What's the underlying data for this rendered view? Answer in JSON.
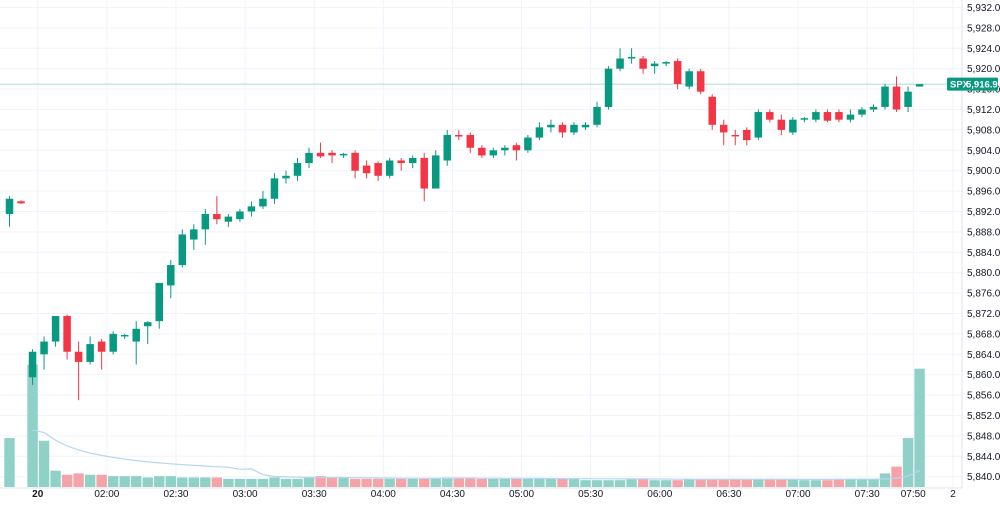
{
  "chart_data": {
    "type": "candlestick",
    "symbol": "SPX",
    "last_price": "5,916.97",
    "y_range": [
      5836,
      5934
    ],
    "y_ticks": [
      "5,840.00",
      "5,844.00",
      "5,848.00",
      "5,852.00",
      "5,856.00",
      "5,860.00",
      "5,864.00",
      "5,868.00",
      "5,872.00",
      "5,876.00",
      "5,880.00",
      "5,884.00",
      "5,888.00",
      "5,892.00",
      "5,896.00",
      "5,900.00",
      "5,904.00",
      "5,908.00",
      "5,912.00",
      "5,916.00",
      "5,920.00",
      "5,924.00",
      "5,928.00",
      "5,932.00"
    ],
    "x_ticks": [
      {
        "label": "20",
        "index": 2.45
      },
      {
        "label": "02:00",
        "index": 8.45
      },
      {
        "label": "02:30",
        "index": 14.45
      },
      {
        "label": "03:00",
        "index": 20.45
      },
      {
        "label": "03:30",
        "index": 26.45
      },
      {
        "label": "04:00",
        "index": 32.45
      },
      {
        "label": "04:30",
        "index": 38.45
      },
      {
        "label": "05:00",
        "index": 44.45
      },
      {
        "label": "05:30",
        "index": 50.45
      },
      {
        "label": "06:00",
        "index": 56.45
      },
      {
        "label": "06:30",
        "index": 62.45
      },
      {
        "label": "07:00",
        "index": 68.45
      },
      {
        "label": "07:30",
        "index": 74.45
      },
      {
        "label": "07:50",
        "index": 78.45
      },
      {
        "label": "2",
        "index": 81.9
      }
    ],
    "volume_max": 100,
    "candles": [
      {
        "o": 5891.5,
        "h": 5895.0,
        "l": 5889.0,
        "c": 5894.5,
        "v": 36
      },
      {
        "o": 5894.0,
        "h": 5894.2,
        "l": 5893.5,
        "c": 5893.6,
        "v": 0
      },
      {
        "o": 5859.5,
        "h": 5865.0,
        "l": 5858.0,
        "c": 5864.5,
        "v": 90
      },
      {
        "o": 5864.0,
        "h": 5867.5,
        "l": 5861.0,
        "c": 5866.5,
        "v": 34
      },
      {
        "o": 5866.5,
        "h": 5871.5,
        "l": 5865.5,
        "c": 5871.5,
        "v": 12
      },
      {
        "o": 5871.5,
        "h": 5871.8,
        "l": 5863.0,
        "c": 5864.5,
        "v": 9
      },
      {
        "o": 5864.5,
        "h": 5866.5,
        "l": 5855.0,
        "c": 5862.5,
        "v": 10
      },
      {
        "o": 5862.5,
        "h": 5867.5,
        "l": 5862.0,
        "c": 5866.0,
        "v": 9
      },
      {
        "o": 5866.5,
        "h": 5867.0,
        "l": 5861.0,
        "c": 5864.5,
        "v": 9
      },
      {
        "o": 5864.5,
        "h": 5868.5,
        "l": 5864.0,
        "c": 5868.0,
        "v": 8
      },
      {
        "o": 5867.5,
        "h": 5868.0,
        "l": 5867.0,
        "c": 5867.8,
        "v": 8
      },
      {
        "o": 5866.5,
        "h": 5870.5,
        "l": 5862.0,
        "c": 5869.0,
        "v": 8
      },
      {
        "o": 5869.5,
        "h": 5870.5,
        "l": 5866.0,
        "c": 5870.3,
        "v": 7
      },
      {
        "o": 5870.5,
        "h": 5878.0,
        "l": 5869.0,
        "c": 5878.0,
        "v": 8
      },
      {
        "o": 5877.5,
        "h": 5882.5,
        "l": 5875.0,
        "c": 5881.5,
        "v": 8
      },
      {
        "o": 5881.5,
        "h": 5888.5,
        "l": 5881.0,
        "c": 5887.5,
        "v": 7
      },
      {
        "o": 5886.5,
        "h": 5889.5,
        "l": 5884.5,
        "c": 5888.5,
        "v": 7
      },
      {
        "o": 5888.5,
        "h": 5892.5,
        "l": 5885.5,
        "c": 5891.5,
        "v": 7
      },
      {
        "o": 5891.5,
        "h": 5895.0,
        "l": 5889.5,
        "c": 5890.5,
        "v": 7
      },
      {
        "o": 5890.0,
        "h": 5891.5,
        "l": 5889.0,
        "c": 5891.0,
        "v": 6
      },
      {
        "o": 5890.5,
        "h": 5892.5,
        "l": 5890.0,
        "c": 5892.0,
        "v": 6
      },
      {
        "o": 5892.0,
        "h": 5894.0,
        "l": 5891.0,
        "c": 5893.0,
        "v": 6
      },
      {
        "o": 5893.0,
        "h": 5896.0,
        "l": 5892.5,
        "c": 5894.5,
        "v": 6
      },
      {
        "o": 5894.5,
        "h": 5899.5,
        "l": 5893.5,
        "c": 5898.5,
        "v": 7
      },
      {
        "o": 5898.5,
        "h": 5900.0,
        "l": 5897.5,
        "c": 5899.0,
        "v": 6
      },
      {
        "o": 5899.0,
        "h": 5902.5,
        "l": 5898.0,
        "c": 5901.5,
        "v": 6
      },
      {
        "o": 5901.5,
        "h": 5904.5,
        "l": 5900.5,
        "c": 5903.5,
        "v": 7
      },
      {
        "o": 5903.5,
        "h": 5905.5,
        "l": 5902.5,
        "c": 5902.8,
        "v": 8
      },
      {
        "o": 5903.5,
        "h": 5904.0,
        "l": 5901.5,
        "c": 5903.0,
        "v": 7
      },
      {
        "o": 5903.0,
        "h": 5903.5,
        "l": 5902.5,
        "c": 5903.3,
        "v": 7
      },
      {
        "o": 5903.5,
        "h": 5904.0,
        "l": 5898.5,
        "c": 5900.0,
        "v": 6
      },
      {
        "o": 5901.0,
        "h": 5902.0,
        "l": 5898.5,
        "c": 5899.5,
        "v": 6
      },
      {
        "o": 5901.5,
        "h": 5901.8,
        "l": 5898.0,
        "c": 5899.0,
        "v": 6
      },
      {
        "o": 5899.0,
        "h": 5902.5,
        "l": 5898.5,
        "c": 5902.0,
        "v": 6
      },
      {
        "o": 5902.0,
        "h": 5902.5,
        "l": 5900.0,
        "c": 5901.5,
        "v": 6
      },
      {
        "o": 5901.5,
        "h": 5903.0,
        "l": 5900.5,
        "c": 5902.5,
        "v": 6
      },
      {
        "o": 5902.5,
        "h": 5903.5,
        "l": 5894.0,
        "c": 5896.5,
        "v": 6
      },
      {
        "o": 5896.5,
        "h": 5904.0,
        "l": 5896.5,
        "c": 5903.0,
        "v": 6
      },
      {
        "o": 5902.0,
        "h": 5908.0,
        "l": 5901.0,
        "c": 5907.0,
        "v": 7
      },
      {
        "o": 5907.0,
        "h": 5908.0,
        "l": 5906.0,
        "c": 5906.7,
        "v": 7
      },
      {
        "o": 5907.0,
        "h": 5907.5,
        "l": 5903.5,
        "c": 5904.5,
        "v": 7
      },
      {
        "o": 5904.5,
        "h": 5905.0,
        "l": 5902.5,
        "c": 5903.0,
        "v": 6
      },
      {
        "o": 5903.0,
        "h": 5904.5,
        "l": 5902.5,
        "c": 5904.0,
        "v": 6
      },
      {
        "o": 5904.0,
        "h": 5905.0,
        "l": 5903.0,
        "c": 5904.5,
        "v": 6
      },
      {
        "o": 5905.0,
        "h": 5905.5,
        "l": 5902.0,
        "c": 5904.0,
        "v": 6
      },
      {
        "o": 5904.0,
        "h": 5907.0,
        "l": 5903.5,
        "c": 5906.5,
        "v": 6
      },
      {
        "o": 5906.5,
        "h": 5909.5,
        "l": 5906.0,
        "c": 5908.5,
        "v": 6
      },
      {
        "o": 5908.5,
        "h": 5910.0,
        "l": 5907.5,
        "c": 5909.0,
        "v": 6
      },
      {
        "o": 5909.0,
        "h": 5909.5,
        "l": 5906.5,
        "c": 5907.5,
        "v": 6
      },
      {
        "o": 5907.5,
        "h": 5909.5,
        "l": 5907.0,
        "c": 5909.0,
        "v": 6
      },
      {
        "o": 5908.5,
        "h": 5909.5,
        "l": 5908.0,
        "c": 5909.0,
        "v": 5
      },
      {
        "o": 5909.0,
        "h": 5913.5,
        "l": 5908.5,
        "c": 5912.5,
        "v": 5
      },
      {
        "o": 5912.5,
        "h": 5920.5,
        "l": 5912.0,
        "c": 5920.0,
        "v": 5
      },
      {
        "o": 5920.0,
        "h": 5924.0,
        "l": 5919.5,
        "c": 5922.0,
        "v": 5
      },
      {
        "o": 5922.0,
        "h": 5924.0,
        "l": 5921.0,
        "c": 5922.3,
        "v": 6
      },
      {
        "o": 5922.0,
        "h": 5922.5,
        "l": 5919.0,
        "c": 5920.0,
        "v": 6
      },
      {
        "o": 5920.5,
        "h": 5921.5,
        "l": 5919.0,
        "c": 5921.0,
        "v": 5
      },
      {
        "o": 5921.0,
        "h": 5921.5,
        "l": 5920.5,
        "c": 5921.3,
        "v": 5
      },
      {
        "o": 5921.5,
        "h": 5922.0,
        "l": 5916.0,
        "c": 5917.0,
        "v": 5
      },
      {
        "o": 5916.5,
        "h": 5920.0,
        "l": 5916.0,
        "c": 5919.5,
        "v": 6
      },
      {
        "o": 5919.5,
        "h": 5920.0,
        "l": 5915.0,
        "c": 5915.5,
        "v": 6
      },
      {
        "o": 5914.5,
        "h": 5915.0,
        "l": 5908.0,
        "c": 5909.0,
        "v": 6
      },
      {
        "o": 5909.0,
        "h": 5910.0,
        "l": 5905.0,
        "c": 5907.5,
        "v": 6
      },
      {
        "o": 5907.0,
        "h": 5908.0,
        "l": 5905.0,
        "c": 5906.8,
        "v": 6
      },
      {
        "o": 5908.0,
        "h": 5908.5,
        "l": 5905.0,
        "c": 5906.0,
        "v": 6
      },
      {
        "o": 5906.5,
        "h": 5912.0,
        "l": 5906.0,
        "c": 5911.5,
        "v": 6
      },
      {
        "o": 5911.5,
        "h": 5912.0,
        "l": 5909.5,
        "c": 5910.0,
        "v": 6
      },
      {
        "o": 5910.0,
        "h": 5911.0,
        "l": 5907.0,
        "c": 5908.0,
        "v": 6
      },
      {
        "o": 5907.5,
        "h": 5910.5,
        "l": 5907.0,
        "c": 5910.0,
        "v": 6
      },
      {
        "o": 5910.0,
        "h": 5910.5,
        "l": 5909.5,
        "c": 5910.3,
        "v": 5
      },
      {
        "o": 5910.0,
        "h": 5912.0,
        "l": 5909.5,
        "c": 5911.5,
        "v": 5
      },
      {
        "o": 5911.5,
        "h": 5912.0,
        "l": 5909.5,
        "c": 5909.8,
        "v": 5
      },
      {
        "o": 5911.5,
        "h": 5912.0,
        "l": 5909.5,
        "c": 5910.0,
        "v": 6
      },
      {
        "o": 5910.0,
        "h": 5912.0,
        "l": 5909.5,
        "c": 5911.0,
        "v": 6
      },
      {
        "o": 5911.0,
        "h": 5912.5,
        "l": 5910.5,
        "c": 5912.0,
        "v": 6
      },
      {
        "o": 5912.0,
        "h": 5913.0,
        "l": 5911.5,
        "c": 5912.5,
        "v": 6
      },
      {
        "o": 5912.5,
        "h": 5917.0,
        "l": 5912.0,
        "c": 5916.5,
        "v": 10
      },
      {
        "o": 5916.5,
        "h": 5918.5,
        "l": 5911.5,
        "c": 5912.0,
        "v": 15
      },
      {
        "o": 5912.5,
        "h": 5916.5,
        "l": 5911.5,
        "c": 5915.5,
        "v": 36
      },
      {
        "o": 5916.5,
        "h": 5917.0,
        "l": 5916.5,
        "c": 5916.97,
        "v": 87
      }
    ],
    "colors": {
      "up": "#089981",
      "down": "#f23645",
      "volume_up": "#8fd1c6",
      "volume_down": "#f5a3a8",
      "grid": "#f0f3fa",
      "last_price_badge": "#089981"
    }
  }
}
